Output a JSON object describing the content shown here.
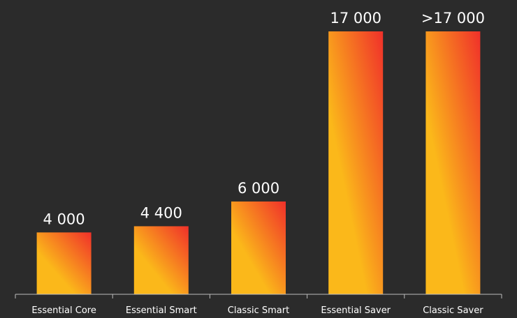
{
  "chart_data": {
    "type": "bar",
    "categories": [
      "Essential Core",
      "Essential Smart",
      "Classic Smart",
      "Essential Saver",
      "Classic Saver"
    ],
    "values": [
      4000,
      4400,
      6000,
      17000,
      17000
    ],
    "data_labels": [
      "4 000",
      "4 400",
      "6 000",
      "17 000",
      ">17 000"
    ],
    "title": "",
    "xlabel": "",
    "ylabel": "",
    "ylim": [
      0,
      17000
    ],
    "grid": false,
    "legend": "none",
    "colors": {
      "background": "#2b2b2b",
      "bar_gradient_start": "#fbb81a",
      "bar_gradient_end": "#f0302a",
      "text": "#ffffff",
      "axis": "#bdbdbd"
    }
  }
}
